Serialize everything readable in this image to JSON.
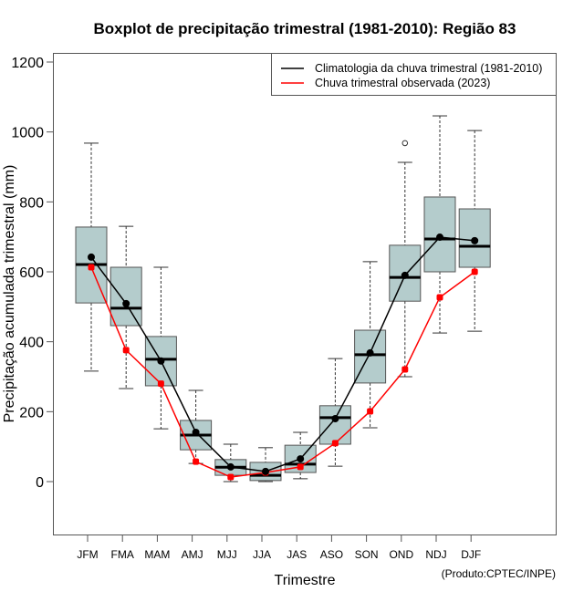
{
  "chart_data": {
    "type": "boxplot",
    "title": "Boxplot de precipitação trimestral (1981-2010): Região 83",
    "xlabel": "Trimestre",
    "ylabel": "Precipitação acumulada trimestral (mm)",
    "credit": "(Produto:CPTEC/INPE)",
    "ylim": [
      -150,
      1230
    ],
    "yticks": [
      0,
      200,
      400,
      600,
      800,
      1000,
      1200
    ],
    "ytick_labels": [
      "0",
      "200",
      "400",
      "600",
      "800",
      "1000",
      "1200"
    ],
    "grid": false,
    "legend_position": "top-right",
    "categories": [
      "JFM",
      "FMA",
      "MAM",
      "AMJ",
      "MJJ",
      "JJA",
      "JAS",
      "ASO",
      "SON",
      "OND",
      "NDJ",
      "DJF"
    ],
    "boxes": [
      {
        "category": "JFM",
        "whisker_low": 316,
        "q1": 511,
        "median": 621,
        "q3": 728,
        "whisker_high": 968,
        "outliers": []
      },
      {
        "category": "FMA",
        "whisker_low": 266,
        "q1": 446,
        "median": 496,
        "q3": 613,
        "whisker_high": 730,
        "outliers": []
      },
      {
        "category": "MAM",
        "whisker_low": 151,
        "q1": 274,
        "median": 350,
        "q3": 415,
        "whisker_high": 613,
        "outliers": []
      },
      {
        "category": "AMJ",
        "whisker_low": 52,
        "q1": 91,
        "median": 133,
        "q3": 175,
        "whisker_high": 261,
        "outliers": []
      },
      {
        "category": "MJJ",
        "whisker_low": 0,
        "q1": 18,
        "median": 41,
        "q3": 63,
        "whisker_high": 107,
        "outliers": []
      },
      {
        "category": "JJA",
        "whisker_low": 0,
        "q1": 3,
        "median": 18,
        "q3": 55,
        "whisker_high": 97,
        "outliers": []
      },
      {
        "category": "JAS",
        "whisker_low": 8,
        "q1": 26,
        "median": 50,
        "q3": 104,
        "whisker_high": 141,
        "outliers": []
      },
      {
        "category": "ASO",
        "whisker_low": 44,
        "q1": 107,
        "median": 183,
        "q3": 217,
        "whisker_high": 352,
        "outliers": []
      },
      {
        "category": "SON",
        "whisker_low": 154,
        "q1": 282,
        "median": 363,
        "q3": 433,
        "whisker_high": 629,
        "outliers": []
      },
      {
        "category": "OND",
        "whisker_low": 300,
        "q1": 516,
        "median": 584,
        "q3": 676,
        "whisker_high": 913,
        "outliers": [
          968
        ]
      },
      {
        "category": "NDJ",
        "whisker_low": 425,
        "q1": 600,
        "median": 694,
        "q3": 814,
        "whisker_high": 1046,
        "outliers": []
      },
      {
        "category": "DJF",
        "whisker_low": 430,
        "q1": 613,
        "median": 673,
        "q3": 780,
        "whisker_high": 1004,
        "outliers": []
      }
    ],
    "series": [
      {
        "name": "Climatologia da chuva trimestral (1981-2010)",
        "color": "#000000",
        "values": [
          642,
          509,
          345,
          141,
          42,
          29,
          65,
          180,
          368,
          590,
          699,
          689
        ]
      },
      {
        "name": "Chuva trimestral observada (2023)",
        "color": "#ff0000",
        "values": [
          613,
          376,
          280,
          57,
          13,
          26,
          42,
          110,
          201,
          321,
          527,
          600
        ]
      }
    ],
    "colors": {
      "box_fill": "#b4cccc",
      "box_border": "#555555",
      "axis": "#555555"
    }
  }
}
